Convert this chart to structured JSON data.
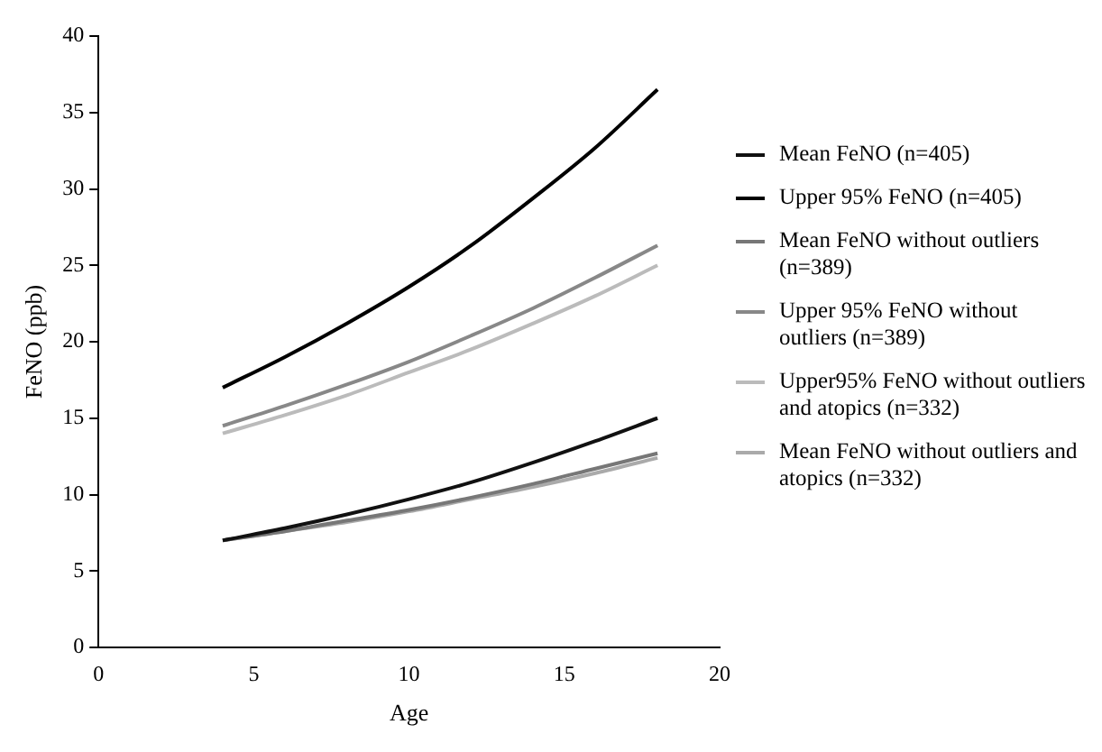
{
  "chart_data": {
    "type": "line",
    "xlabel": "Age",
    "ylabel": "FeNO (ppb)",
    "x": [
      4,
      6,
      8,
      10,
      12,
      14,
      16,
      18
    ],
    "xlim": [
      0,
      20
    ],
    "xticks": [
      0,
      5,
      10,
      15,
      20
    ],
    "ylim": [
      0,
      40
    ],
    "yticks": [
      0,
      5,
      10,
      15,
      20,
      25,
      30,
      35,
      40
    ],
    "grid": false,
    "legend": "right",
    "marker": "none",
    "line_style": "solid",
    "series": [
      {
        "name": "Mean FeNO (n=405)",
        "color": "#111111",
        "values": [
          7,
          7.8,
          8.7,
          9.7,
          10.8,
          12.1,
          13.5,
          15
        ]
      },
      {
        "name": "Upper 95% FeNO (n=405)",
        "color": "#000000",
        "values": [
          17,
          19,
          21.2,
          23.6,
          26.3,
          29.4,
          32.7,
          36.5
        ]
      },
      {
        "name": "Mean FeNO without outliers (n=389)",
        "color": "#777777",
        "values": [
          7,
          7.6,
          8.3,
          9,
          9.8,
          10.7,
          11.7,
          12.7
        ]
      },
      {
        "name": "Upper 95% FeNO without outliers (n=389)",
        "color": "#888888",
        "values": [
          14.5,
          15.8,
          17.2,
          18.7,
          20.4,
          22.2,
          24.2,
          26.3
        ]
      },
      {
        "name": "Upper95% FeNO without outliers and atopics (n=332)",
        "color": "#bbbbbb",
        "values": [
          14,
          15.2,
          16.5,
          18,
          19.5,
          21.2,
          23,
          25
        ]
      },
      {
        "name": "Mean FeNO without outliers and atopics (n=332)",
        "color": "#aaaaaa",
        "values": [
          7,
          7.6,
          8.2,
          8.9,
          9.7,
          10.5,
          11.4,
          12.4
        ]
      }
    ]
  }
}
